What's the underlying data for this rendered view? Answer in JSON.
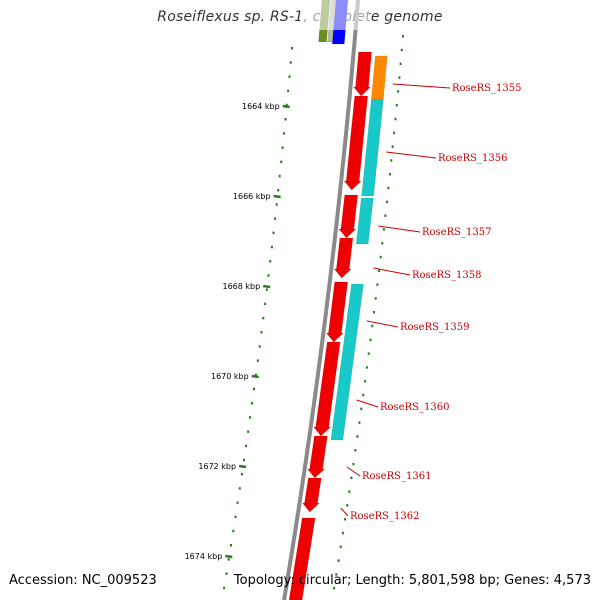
{
  "title": "Roseiflexus sp. RS-1, complete genome",
  "accession_label": "Accession: NC_009523",
  "summary_label": "Topology: circular; Length: 5,801,598 bp; Genes: 4,573",
  "colors": {
    "backbone": "#8a8a8a",
    "tick": "#2a7d1e",
    "gene_red": "#ee0000",
    "gene_cyan": "#19c8c8",
    "gene_orange": "#ff8800",
    "gene_blue": "#0000ff",
    "gene_olive": "#6b8e23",
    "label": "#cc0000"
  },
  "scale_ticks": [
    {
      "label": "1664 kbp"
    },
    {
      "label": "1666 kbp"
    },
    {
      "label": "1668 kbp"
    },
    {
      "label": "1670 kbp"
    },
    {
      "label": "1672 kbp"
    },
    {
      "label": "1674 kbp"
    }
  ],
  "gene_labels": [
    {
      "name": "RoseRS_1355"
    },
    {
      "name": "RoseRS_1356"
    },
    {
      "name": "RoseRS_1357"
    },
    {
      "name": "RoseRS_1358"
    },
    {
      "name": "RoseRS_1359"
    },
    {
      "name": "RoseRS_1360"
    },
    {
      "name": "RoseRS_1361"
    },
    {
      "name": "RoseRS_1362"
    }
  ]
}
